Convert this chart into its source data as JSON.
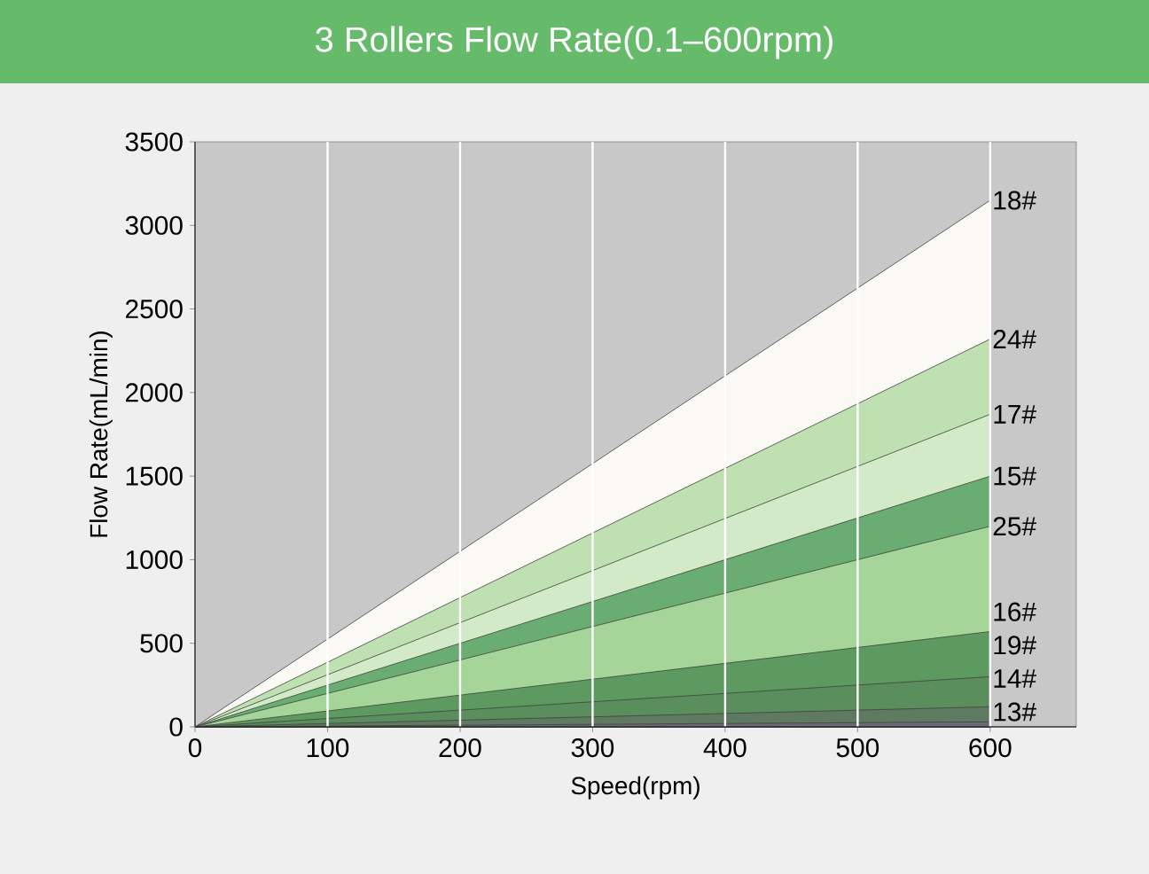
{
  "chart_data": {
    "type": "area",
    "title": "3 Rollers Flow Rate(0.1–600rpm)",
    "xlabel": "Speed(rpm)",
    "ylabel": "Flow Rate(mL/min)",
    "x": [
      0,
      600
    ],
    "xlim": [
      0,
      665
    ],
    "xticks": [
      0,
      100,
      200,
      300,
      400,
      500,
      600
    ],
    "ylim": [
      0,
      3500
    ],
    "yticks": [
      0,
      500,
      1000,
      1500,
      2000,
      2500,
      3000,
      3500
    ],
    "grid": "x",
    "series": [
      {
        "name": "13#",
        "color": "#686b76",
        "values": [
          0,
          30
        ]
      },
      {
        "name": "14#",
        "color": "#5f7a61",
        "values": [
          0,
          120
        ]
      },
      {
        "name": "19#",
        "color": "#5a8e5c",
        "values": [
          0,
          300
        ]
      },
      {
        "name": "16#",
        "color": "#5d9a60",
        "values": [
          0,
          570
        ]
      },
      {
        "name": "25#",
        "color": "#a6d599",
        "values": [
          0,
          1200
        ]
      },
      {
        "name": "15#",
        "color": "#6aad72",
        "values": [
          0,
          1500
        ]
      },
      {
        "name": "17#",
        "color": "#d3eac8",
        "values": [
          0,
          1870
        ]
      },
      {
        "name": "24#",
        "color": "#bfe0b0",
        "values": [
          0,
          2320
        ]
      },
      {
        "name": "18#",
        "color": "#fbf9f3",
        "values": [
          0,
          3150
        ]
      }
    ]
  }
}
